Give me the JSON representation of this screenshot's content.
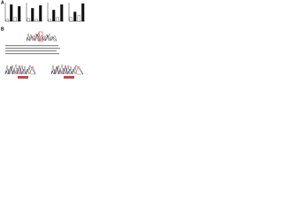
{
  "panels": {
    "a": "A",
    "b": "B"
  },
  "chart_data": [
    {
      "type": "bar",
      "categories": [
        null,
        null,
        null,
        null
      ],
      "values": [
        0.1,
        0.9,
        0.2,
        0.8
      ],
      "color": "#111111",
      "ylim": [
        0,
        1
      ]
    },
    {
      "type": "bar",
      "categories": [
        null,
        null,
        null,
        null
      ],
      "values": [
        0.15,
        0.7,
        0.1,
        0.85
      ],
      "color": "#111111",
      "ylim": [
        0,
        1
      ]
    },
    {
      "type": "bar",
      "categories": [
        null,
        null,
        null,
        null
      ],
      "values": [
        0.1,
        0.6,
        0.2,
        0.9
      ],
      "color": "#111111",
      "ylim": [
        0,
        1
      ]
    },
    {
      "type": "bar",
      "categories": [
        null,
        null,
        null,
        null
      ],
      "values": [
        0.2,
        0.5,
        0.3,
        0.95
      ],
      "color": "#111111",
      "ylim": [
        0,
        1
      ]
    }
  ]
}
